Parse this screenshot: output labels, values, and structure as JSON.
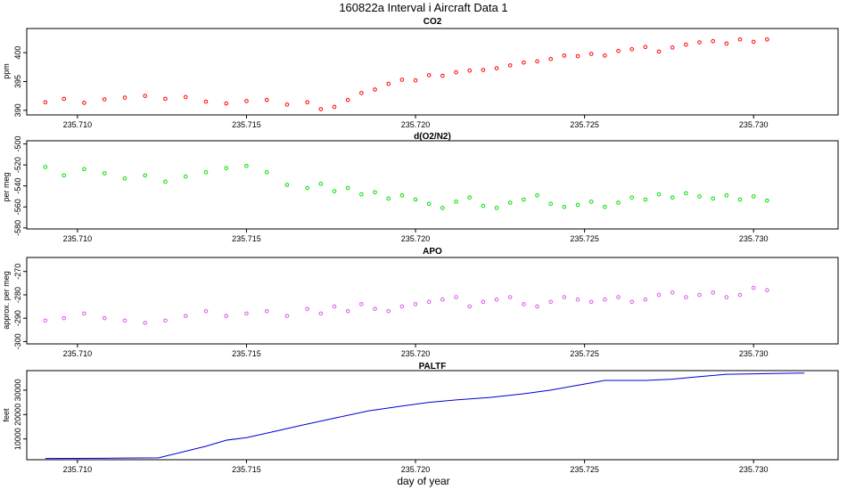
{
  "title": "160822a   Interval i Aircraft Data 1",
  "xlabel": "day of year",
  "chart_data": [
    {
      "type": "scatter",
      "title": "CO2",
      "ylabel": "ppm",
      "xlim": [
        235.7085,
        235.7325
      ],
      "ylim": [
        389.2,
        404.2
      ],
      "xticks": [
        "235.710",
        "235.715",
        "235.720",
        "235.725",
        "235.730"
      ],
      "xtick_values": [
        235.71,
        235.715,
        235.72,
        235.725,
        235.73
      ],
      "yticks": [
        "390",
        "395",
        "400"
      ],
      "ytick_values": [
        390,
        395,
        400
      ],
      "color": "#ff0000",
      "marker": "open circle",
      "points": [
        [
          235.70905,
          391.4
        ],
        [
          235.7096,
          392.0
        ],
        [
          235.7102,
          391.3
        ],
        [
          235.7108,
          391.9
        ],
        [
          235.7114,
          392.2
        ],
        [
          235.712,
          392.5
        ],
        [
          235.7126,
          392.0
        ],
        [
          235.7132,
          392.3
        ],
        [
          235.7138,
          391.5
        ],
        [
          235.7144,
          391.2
        ],
        [
          235.715,
          391.6
        ],
        [
          235.7156,
          391.8
        ],
        [
          235.7162,
          391.0
        ],
        [
          235.7168,
          391.4
        ],
        [
          235.7172,
          390.2
        ],
        [
          235.7176,
          390.6
        ],
        [
          235.718,
          391.8
        ],
        [
          235.7184,
          393.0
        ],
        [
          235.7188,
          393.6
        ],
        [
          235.7192,
          394.6
        ],
        [
          235.7196,
          395.3
        ],
        [
          235.72,
          395.2
        ],
        [
          235.7204,
          396.1
        ],
        [
          235.7208,
          396.0
        ],
        [
          235.7212,
          396.6
        ],
        [
          235.7216,
          396.9
        ],
        [
          235.722,
          397.0
        ],
        [
          235.7224,
          397.3
        ],
        [
          235.7228,
          397.8
        ],
        [
          235.7232,
          398.3
        ],
        [
          235.7236,
          398.5
        ],
        [
          235.724,
          398.9
        ],
        [
          235.7244,
          399.5
        ],
        [
          235.7248,
          399.4
        ],
        [
          235.7252,
          399.8
        ],
        [
          235.7256,
          399.5
        ],
        [
          235.726,
          400.3
        ],
        [
          235.7264,
          400.6
        ],
        [
          235.7268,
          401.0
        ],
        [
          235.7272,
          400.2
        ],
        [
          235.7276,
          400.9
        ],
        [
          235.728,
          401.4
        ],
        [
          235.7284,
          401.8
        ],
        [
          235.7288,
          402.0
        ],
        [
          235.7292,
          401.6
        ],
        [
          235.7296,
          402.3
        ],
        [
          235.73,
          401.9
        ],
        [
          235.7304,
          402.3
        ]
      ]
    },
    {
      "type": "scatter",
      "title": "d(O2/N2)",
      "ylabel": "per meg",
      "xlim": [
        235.7085,
        235.7325
      ],
      "ylim": [
        -581,
        -497
      ],
      "xticks": [
        "235.710",
        "235.715",
        "235.720",
        "235.725",
        "235.730"
      ],
      "xtick_values": [
        235.71,
        235.715,
        235.72,
        235.725,
        235.73
      ],
      "yticks": [
        "-580",
        "-560",
        "-540",
        "-520",
        "-500"
      ],
      "ytick_values": [
        -580,
        -560,
        -540,
        -520,
        -500
      ],
      "color": "#00dd00",
      "marker": "open circle",
      "points": [
        [
          235.70905,
          -522
        ],
        [
          235.7096,
          -530
        ],
        [
          235.7102,
          -524
        ],
        [
          235.7108,
          -528
        ],
        [
          235.7114,
          -533
        ],
        [
          235.712,
          -530
        ],
        [
          235.7126,
          -536
        ],
        [
          235.7132,
          -531
        ],
        [
          235.7138,
          -527
        ],
        [
          235.7144,
          -523
        ],
        [
          235.715,
          -521
        ],
        [
          235.7156,
          -527
        ],
        [
          235.7162,
          -539
        ],
        [
          235.7168,
          -542
        ],
        [
          235.7172,
          -538
        ],
        [
          235.7176,
          -545
        ],
        [
          235.718,
          -542
        ],
        [
          235.7184,
          -548
        ],
        [
          235.7188,
          -546
        ],
        [
          235.7192,
          -552
        ],
        [
          235.7196,
          -549
        ],
        [
          235.72,
          -553
        ],
        [
          235.7204,
          -557
        ],
        [
          235.7208,
          -561
        ],
        [
          235.7212,
          -555
        ],
        [
          235.7216,
          -551
        ],
        [
          235.722,
          -559
        ],
        [
          235.7224,
          -561
        ],
        [
          235.7228,
          -556
        ],
        [
          235.7232,
          -553
        ],
        [
          235.7236,
          -549
        ],
        [
          235.724,
          -557
        ],
        [
          235.7244,
          -560
        ],
        [
          235.7248,
          -558
        ],
        [
          235.7252,
          -555
        ],
        [
          235.7256,
          -560
        ],
        [
          235.726,
          -556
        ],
        [
          235.7264,
          -551
        ],
        [
          235.7268,
          -553
        ],
        [
          235.7272,
          -548
        ],
        [
          235.7276,
          -551
        ],
        [
          235.728,
          -547
        ],
        [
          235.7284,
          -550
        ],
        [
          235.7288,
          -552
        ],
        [
          235.7292,
          -549
        ],
        [
          235.7296,
          -553
        ],
        [
          235.73,
          -550
        ],
        [
          235.7304,
          -554
        ]
      ]
    },
    {
      "type": "scatter",
      "title": "APO",
      "ylabel": "approx. per meg",
      "xlim": [
        235.7085,
        235.7325
      ],
      "ylim": [
        -301,
        -264
      ],
      "xticks": [
        "235.710",
        "235.715",
        "235.720",
        "235.725",
        "235.730"
      ],
      "xtick_values": [
        235.71,
        235.715,
        235.72,
        235.725,
        235.73
      ],
      "yticks": [
        "-300",
        "-290",
        "-280",
        "-270"
      ],
      "ytick_values": [
        -300,
        -290,
        -280,
        -270
      ],
      "color": "#dd55ee",
      "marker": "open circle",
      "points": [
        [
          235.70905,
          -291
        ],
        [
          235.7096,
          -290
        ],
        [
          235.7102,
          -288
        ],
        [
          235.7108,
          -290
        ],
        [
          235.7114,
          -291
        ],
        [
          235.712,
          -292
        ],
        [
          235.7126,
          -291
        ],
        [
          235.7132,
          -289
        ],
        [
          235.7138,
          -287
        ],
        [
          235.7144,
          -289
        ],
        [
          235.715,
          -288
        ],
        [
          235.7156,
          -287
        ],
        [
          235.7162,
          -289
        ],
        [
          235.7168,
          -286
        ],
        [
          235.7172,
          -288
        ],
        [
          235.7176,
          -285
        ],
        [
          235.718,
          -287
        ],
        [
          235.7184,
          -284
        ],
        [
          235.7188,
          -286
        ],
        [
          235.7192,
          -287
        ],
        [
          235.7196,
          -285
        ],
        [
          235.72,
          -284
        ],
        [
          235.7204,
          -283
        ],
        [
          235.7208,
          -282
        ],
        [
          235.7212,
          -281
        ],
        [
          235.7216,
          -285
        ],
        [
          235.722,
          -283
        ],
        [
          235.7224,
          -282
        ],
        [
          235.7228,
          -281
        ],
        [
          235.7232,
          -284
        ],
        [
          235.7236,
          -285
        ],
        [
          235.724,
          -283
        ],
        [
          235.7244,
          -281
        ],
        [
          235.7248,
          -282
        ],
        [
          235.7252,
          -283
        ],
        [
          235.7256,
          -282
        ],
        [
          235.726,
          -281
        ],
        [
          235.7264,
          -283
        ],
        [
          235.7268,
          -282
        ],
        [
          235.7272,
          -280
        ],
        [
          235.7276,
          -279
        ],
        [
          235.728,
          -281
        ],
        [
          235.7284,
          -280
        ],
        [
          235.7288,
          -279
        ],
        [
          235.7292,
          -281
        ],
        [
          235.7296,
          -280
        ],
        [
          235.73,
          -277
        ],
        [
          235.7304,
          -278
        ]
      ]
    },
    {
      "type": "line",
      "title": "PALTF",
      "ylabel": "feet",
      "xlim": [
        235.7085,
        235.7325
      ],
      "ylim": [
        1500,
        38000
      ],
      "xticks": [
        "235.710",
        "235.715",
        "235.720",
        "235.725",
        "235.730"
      ],
      "xtick_values": [
        235.71,
        235.715,
        235.72,
        235.725,
        235.73
      ],
      "yticks": [
        "10000",
        "20000",
        "30000"
      ],
      "ytick_values": [
        10000,
        20000,
        30000
      ],
      "color": "#0000cc",
      "points": [
        [
          235.70905,
          2000
        ],
        [
          235.7108,
          2100
        ],
        [
          235.7114,
          2200
        ],
        [
          235.7124,
          2250
        ],
        [
          235.7138,
          7000
        ],
        [
          235.7144,
          9500
        ],
        [
          235.715,
          10500
        ],
        [
          235.7158,
          13000
        ],
        [
          235.7166,
          15500
        ],
        [
          235.7176,
          18500
        ],
        [
          235.7186,
          21500
        ],
        [
          235.7196,
          23500
        ],
        [
          235.7204,
          25000
        ],
        [
          235.7212,
          26000
        ],
        [
          235.7222,
          27000
        ],
        [
          235.7232,
          28500
        ],
        [
          235.724,
          30000
        ],
        [
          235.7246,
          31500
        ],
        [
          235.7252,
          33000
        ],
        [
          235.7256,
          34000
        ],
        [
          235.7268,
          34000
        ],
        [
          235.7276,
          34500
        ],
        [
          235.7284,
          35500
        ],
        [
          235.7292,
          36500
        ],
        [
          235.7315,
          37000
        ]
      ]
    }
  ]
}
